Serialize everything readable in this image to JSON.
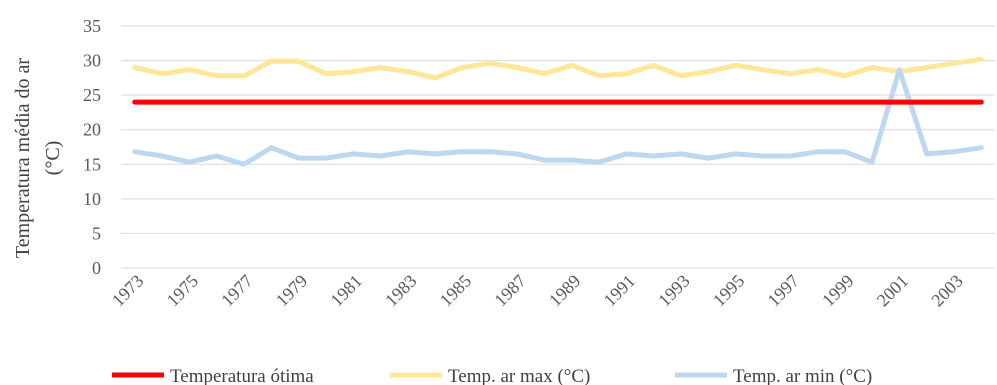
{
  "chart_data": {
    "type": "line",
    "title": "",
    "xlabel": "",
    "ylabel": "Temperatura média do ar (°C)",
    "ylabel_lines": [
      "Temperatura média do ar",
      "(°C)"
    ],
    "ylim": [
      0,
      35
    ],
    "yticks": [
      0,
      5,
      10,
      15,
      20,
      25,
      30,
      35
    ],
    "grid": true,
    "legend": "bottom",
    "x": [
      1973,
      1974,
      1975,
      1976,
      1977,
      1978,
      1979,
      1980,
      1981,
      1982,
      1983,
      1984,
      1985,
      1986,
      1987,
      1988,
      1989,
      1990,
      1991,
      1992,
      1993,
      1994,
      1995,
      1996,
      1997,
      1998,
      1999,
      2000,
      2001,
      2002,
      2003,
      2004
    ],
    "x_tick_labels": [
      "1973",
      "1975",
      "1977",
      "1979",
      "1981",
      "1983",
      "1985",
      "1987",
      "1989",
      "1991",
      "1993",
      "1995",
      "1997",
      "1999",
      "2001",
      "2003"
    ],
    "series": [
      {
        "name": "Temperatura ótima",
        "color": "#ff0000",
        "values": [
          24,
          24,
          24,
          24,
          24,
          24,
          24,
          24,
          24,
          24,
          24,
          24,
          24,
          24,
          24,
          24,
          24,
          24,
          24,
          24,
          24,
          24,
          24,
          24,
          24,
          24,
          24,
          24,
          24,
          24,
          24,
          24
        ]
      },
      {
        "name": "Temp. ar max (°C)",
        "color": "#ffe699",
        "values": [
          29.0,
          28.1,
          28.7,
          27.8,
          27.8,
          29.9,
          29.9,
          28.1,
          28.4,
          29.0,
          28.4,
          27.5,
          29.0,
          29.6,
          29.0,
          28.1,
          29.3,
          27.8,
          28.1,
          29.3,
          27.8,
          28.4,
          29.3,
          28.7,
          28.1,
          28.7,
          27.8,
          29.0,
          28.4,
          29.0,
          29.6,
          30.2
        ]
      },
      {
        "name": "Temp. ar min (°C)",
        "color": "#bdd7ee",
        "values": [
          16.8,
          16.2,
          15.3,
          16.2,
          15.0,
          17.4,
          15.9,
          15.9,
          16.5,
          16.2,
          16.8,
          16.5,
          16.8,
          16.8,
          16.5,
          15.6,
          15.6,
          15.3,
          16.5,
          16.2,
          16.5,
          15.9,
          16.5,
          16.2,
          16.2,
          16.8,
          16.8,
          15.3,
          28.7,
          16.5,
          16.8,
          17.4
        ]
      }
    ]
  }
}
